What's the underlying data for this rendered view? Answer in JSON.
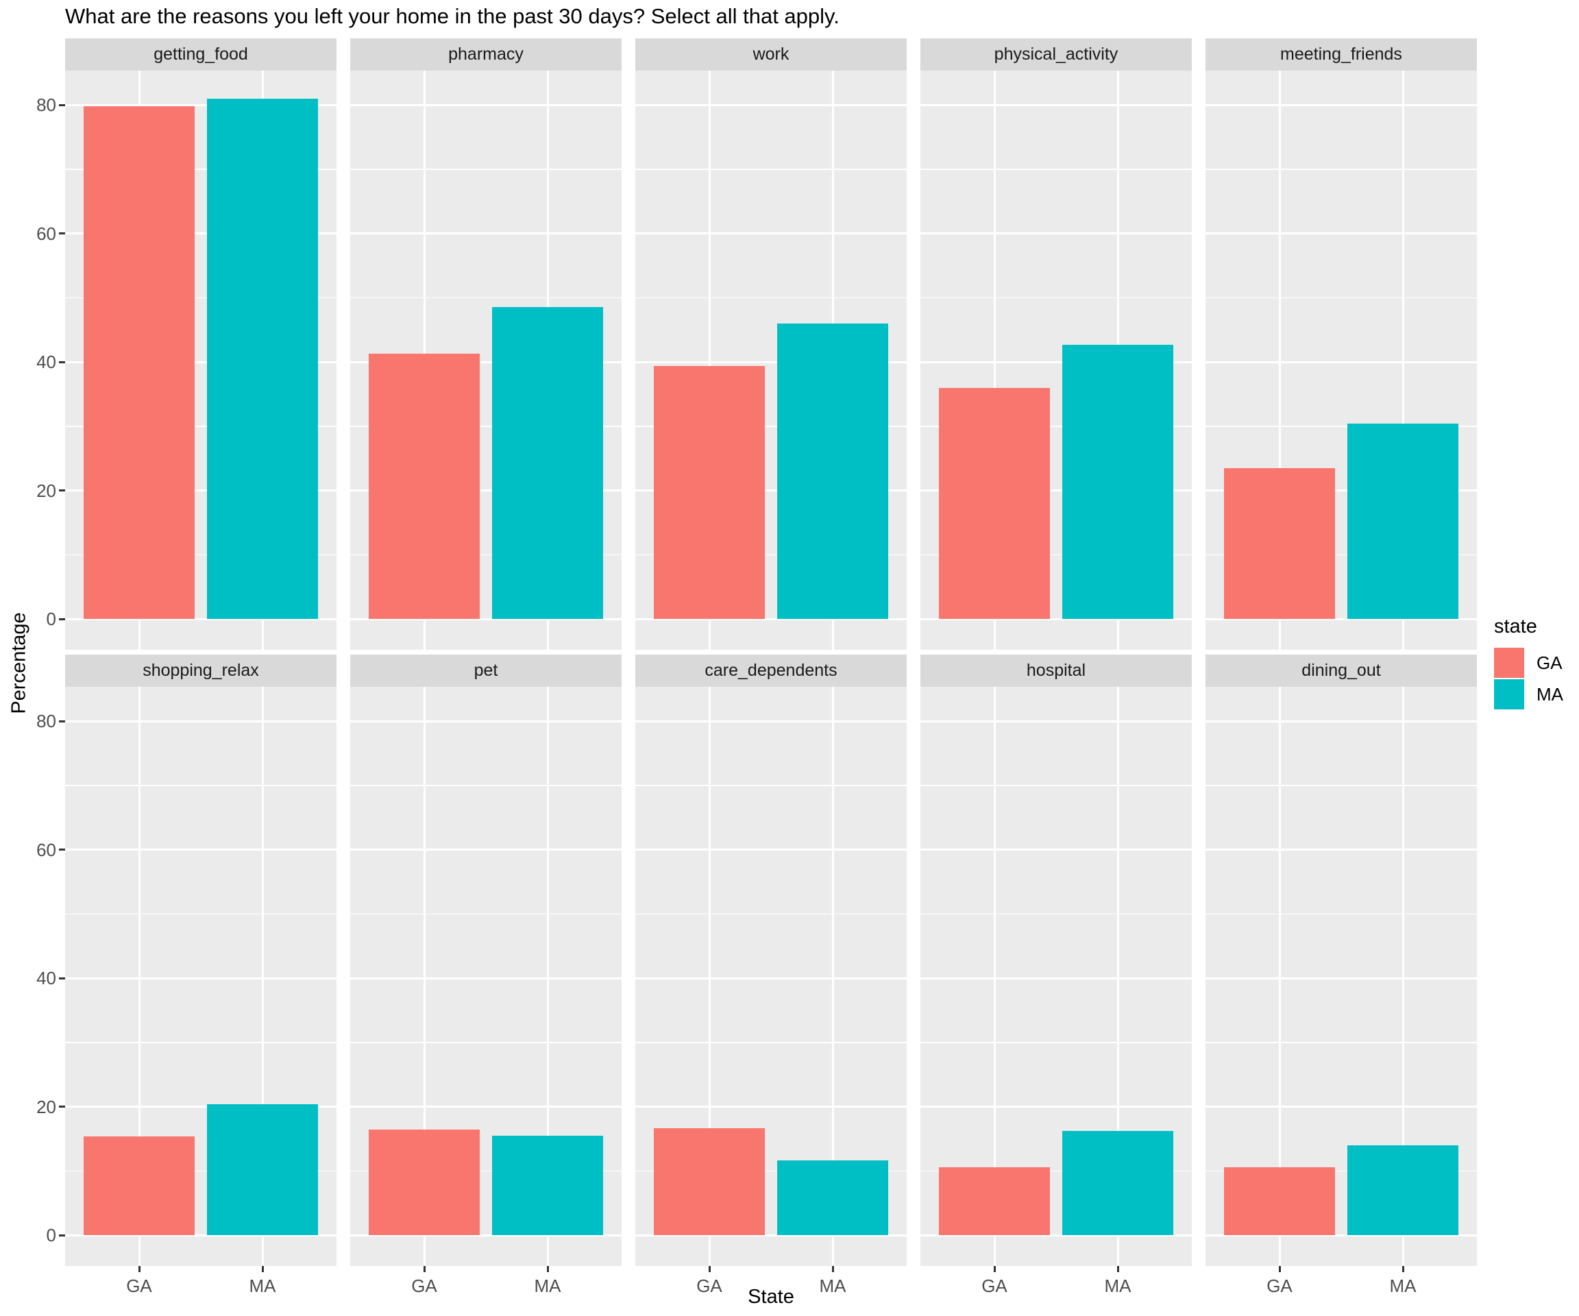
{
  "chart_data": {
    "type": "bar",
    "title": "What are the reasons you left your home in the past 30 days? Select all that apply.",
    "xlabel": "State",
    "ylabel": "Percentage",
    "categories": [
      "GA",
      "MA"
    ],
    "y_ticks": [
      0,
      20,
      40,
      60,
      80
    ],
    "y_minor_ticks": [
      10,
      30,
      50,
      70
    ],
    "ylim": [
      -4.8,
      85.4
    ],
    "grid": "on",
    "legend": {
      "title": "state",
      "position": "right",
      "entries": [
        {
          "label": "GA",
          "color": "#F8766D"
        },
        {
          "label": "MA",
          "color": "#00BFC4"
        }
      ]
    },
    "facet_layout": {
      "rows": 2,
      "cols": 5
    },
    "facets": [
      {
        "label": "getting_food",
        "series": [
          {
            "name": "GA",
            "value": 79.8
          },
          {
            "name": "MA",
            "value": 81.0
          }
        ]
      },
      {
        "label": "pharmacy",
        "series": [
          {
            "name": "GA",
            "value": 41.3
          },
          {
            "name": "MA",
            "value": 48.6
          }
        ]
      },
      {
        "label": "work",
        "series": [
          {
            "name": "GA",
            "value": 39.4
          },
          {
            "name": "MA",
            "value": 46.0
          }
        ]
      },
      {
        "label": "physical_activity",
        "series": [
          {
            "name": "GA",
            "value": 36.0
          },
          {
            "name": "MA",
            "value": 42.7
          }
        ]
      },
      {
        "label": "meeting_friends",
        "series": [
          {
            "name": "GA",
            "value": 23.5
          },
          {
            "name": "MA",
            "value": 30.4
          }
        ]
      },
      {
        "label": "shopping_relax",
        "series": [
          {
            "name": "GA",
            "value": 15.4
          },
          {
            "name": "MA",
            "value": 20.4
          }
        ]
      },
      {
        "label": "pet",
        "series": [
          {
            "name": "GA",
            "value": 16.4
          },
          {
            "name": "MA",
            "value": 15.5
          }
        ]
      },
      {
        "label": "care_dependents",
        "series": [
          {
            "name": "GA",
            "value": 16.7
          },
          {
            "name": "MA",
            "value": 11.6
          }
        ]
      },
      {
        "label": "hospital",
        "series": [
          {
            "name": "GA",
            "value": 10.6
          },
          {
            "name": "MA",
            "value": 16.2
          }
        ]
      },
      {
        "label": "dining_out",
        "series": [
          {
            "name": "GA",
            "value": 10.6
          },
          {
            "name": "MA",
            "value": 14.0
          }
        ]
      }
    ],
    "colors": {
      "ga_bar": "#F8766D",
      "ma_bar": "#00BFC4",
      "panel_background": "#EBEBEB",
      "strip_background": "#D9D9D9",
      "gridline": "#FFFFFF",
      "tick_text": "#4D4D4D",
      "text": "#000000"
    }
  }
}
